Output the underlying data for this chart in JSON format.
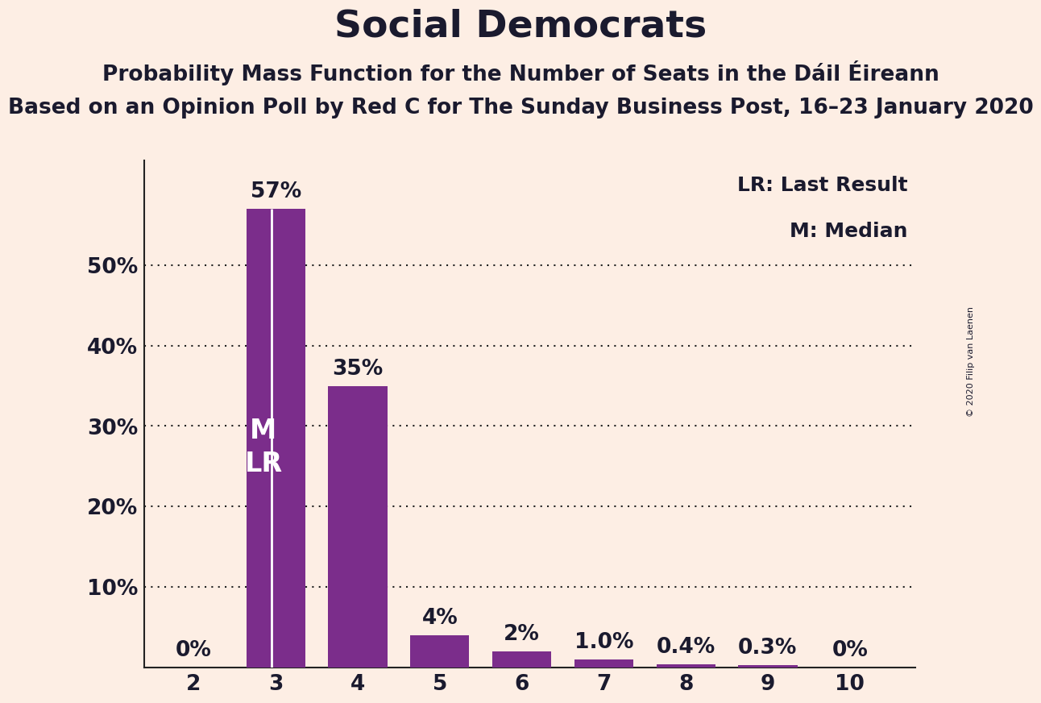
{
  "title": "Social Democrats",
  "subtitle1": "Probability Mass Function for the Number of Seats in the Dáil Éireann",
  "subtitle2": "Based on an Opinion Poll by Red C for The Sunday Business Post, 16–23 January 2020",
  "copyright": "© 2020 Filip van Laenen",
  "seats": [
    2,
    3,
    4,
    5,
    6,
    7,
    8,
    9,
    10
  ],
  "probabilities": [
    0.0,
    57.0,
    35.0,
    4.0,
    2.0,
    1.0,
    0.4,
    0.3,
    0.0
  ],
  "labels": [
    "0%",
    "57%",
    "35%",
    "4%",
    "2%",
    "1.0%",
    "0.4%",
    "0.3%",
    "0%"
  ],
  "bar_color": "#7b2d8b",
  "background_color": "#fdeee4",
  "text_color": "#1a1a2e",
  "label_color_dark": "#1a1a2e",
  "label_color_white": "#fdeee4",
  "median_seat": 3,
  "lr_seat": 3,
  "legend_lr": "LR: Last Result",
  "legend_m": "M: Median",
  "ylim_max": 63,
  "yticks": [
    10,
    20,
    30,
    40,
    50
  ],
  "ytick_labels": [
    "10%",
    "20%",
    "30%",
    "40%",
    "50%"
  ],
  "title_fontsize": 34,
  "subtitle1_fontsize": 19,
  "subtitle2_fontsize": 19,
  "label_fontsize": 19,
  "tick_fontsize": 19,
  "legend_fontsize": 18,
  "mlr_fontsize": 24,
  "bar_width": 0.72
}
